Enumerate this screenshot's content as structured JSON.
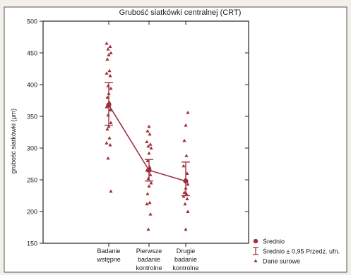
{
  "chart_data": {
    "type": "scatter",
    "title": "Grubość siatkówki centralnej (CRT)",
    "ylabel": "grubość siatkówki (μm)",
    "xlabel": "",
    "ylim": [
      150,
      500
    ],
    "yticks": [
      150,
      200,
      250,
      300,
      350,
      400,
      450,
      500
    ],
    "grid": false,
    "legend_placement": "bottom-right",
    "categories": [
      [
        "Badanie",
        "wstępne"
      ],
      [
        "Pierwsze",
        "badanie",
        "kontrolne"
      ],
      [
        "Drugie",
        "badanie",
        "kontrolne"
      ]
    ],
    "series": [
      {
        "name": "Średnio",
        "values": [
          368,
          265,
          248
        ]
      },
      {
        "name": "Średnio ± 0,95 Przedz. ufn.",
        "lower": [
          336,
          248,
          225
        ],
        "upper": [
          403,
          282,
          278
        ]
      },
      {
        "name": "Dane surowe",
        "points": [
          [
            0,
            465
          ],
          [
            0,
            460
          ],
          [
            0,
            456
          ],
          [
            0,
            450
          ],
          [
            0,
            447
          ],
          [
            0,
            440
          ],
          [
            0,
            422
          ],
          [
            0,
            418
          ],
          [
            0,
            414
          ],
          [
            0,
            398
          ],
          [
            0,
            394
          ],
          [
            0,
            386
          ],
          [
            0,
            380
          ],
          [
            0,
            372
          ],
          [
            0,
            365
          ],
          [
            0,
            360
          ],
          [
            0,
            352
          ],
          [
            0,
            340
          ],
          [
            0,
            334
          ],
          [
            0,
            330
          ],
          [
            0,
            316
          ],
          [
            0,
            308
          ],
          [
            0,
            305
          ],
          [
            0,
            284
          ],
          [
            0,
            232
          ],
          [
            1,
            334
          ],
          [
            1,
            327
          ],
          [
            1,
            322
          ],
          [
            1,
            310
          ],
          [
            1,
            306
          ],
          [
            1,
            303
          ],
          [
            1,
            300
          ],
          [
            1,
            292
          ],
          [
            1,
            280
          ],
          [
            1,
            270
          ],
          [
            1,
            265
          ],
          [
            1,
            258
          ],
          [
            1,
            252
          ],
          [
            1,
            245
          ],
          [
            1,
            240
          ],
          [
            1,
            228
          ],
          [
            1,
            214
          ],
          [
            1,
            212
          ],
          [
            1,
            196
          ],
          [
            1,
            172
          ],
          [
            2,
            356
          ],
          [
            2,
            336
          ],
          [
            2,
            312
          ],
          [
            2,
            288
          ],
          [
            2,
            272
          ],
          [
            2,
            260
          ],
          [
            2,
            250
          ],
          [
            2,
            243
          ],
          [
            2,
            237
          ],
          [
            2,
            230
          ],
          [
            2,
            228
          ],
          [
            2,
            224
          ],
          [
            2,
            220
          ],
          [
            2,
            212
          ],
          [
            2,
            200
          ],
          [
            2,
            172
          ]
        ]
      }
    ],
    "colors": {
      "markers": "#a0303a",
      "line": "#a0303a",
      "text": "#1a1a1a"
    }
  }
}
